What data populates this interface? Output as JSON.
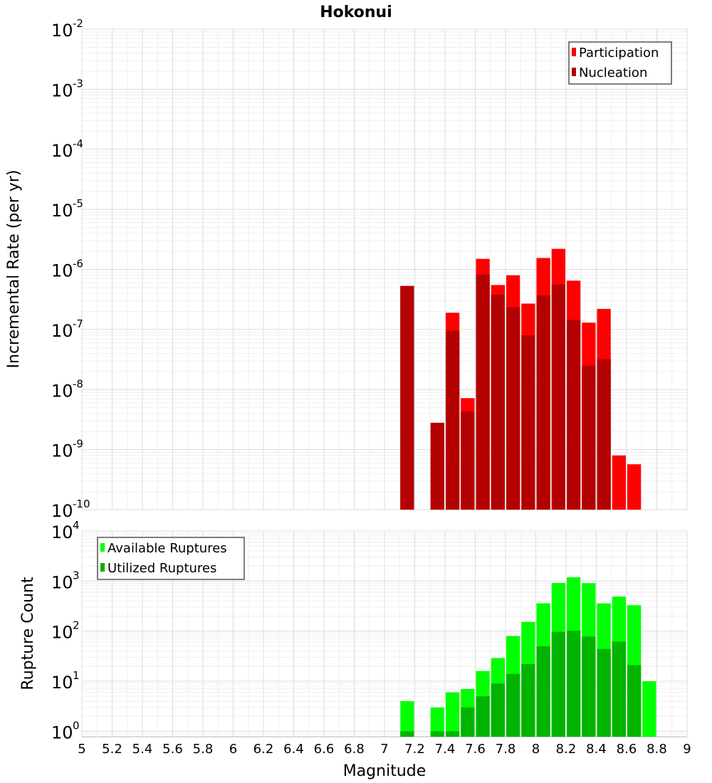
{
  "chart_data": {
    "title": "Hokonui",
    "xlabel": "Magnitude",
    "xlim": [
      5,
      9
    ],
    "xticks": [
      "5",
      "5.2",
      "5.4",
      "5.6",
      "5.8",
      "6",
      "6.2",
      "6.4",
      "6.6",
      "6.8",
      "7",
      "7.2",
      "7.4",
      "7.6",
      "7.8",
      "8",
      "8.2",
      "8.4",
      "8.6",
      "8.8",
      "9"
    ],
    "bin_width": 0.1,
    "panels": [
      {
        "id": "rate",
        "type": "bar",
        "yscale": "log",
        "ylabel": "Incremental Rate (per yr)",
        "ylim": [
          1e-10,
          0.01
        ],
        "ytick_exponents": [
          -10,
          -9,
          -8,
          -7,
          -6,
          -5,
          -4,
          -3,
          -2
        ],
        "legend_position": "top-right",
        "series": [
          {
            "name": "Participation",
            "color": "#ff0000",
            "x": [
              7.15,
              7.35,
              7.45,
              7.55,
              7.65,
              7.75,
              7.85,
              7.95,
              8.05,
              8.15,
              8.25,
              8.35,
              8.45,
              8.55,
              8.65
            ],
            "values": [
              5.3e-07,
              2.8e-09,
              1.9e-07,
              7.2e-09,
              1.5e-06,
              5.5e-07,
              8e-07,
              2.7e-07,
              1.55e-06,
              2.2e-06,
              6.5e-07,
              1.3e-07,
              2.2e-07,
              8e-10,
              5.7e-10
            ]
          },
          {
            "name": "Nucleation",
            "color": "#b30000",
            "x": [
              7.15,
              7.35,
              7.45,
              7.55,
              7.65,
              7.75,
              7.85,
              7.95,
              8.05,
              8.15,
              8.25,
              8.35,
              8.45
            ],
            "values": [
              5.3e-07,
              2.8e-09,
              9.5e-08,
              4.3e-09,
              8.2e-07,
              3.8e-07,
              2.35e-07,
              8e-08,
              3.7e-07,
              5.6e-07,
              1.45e-07,
              2.5e-08,
              3.2e-08
            ]
          }
        ]
      },
      {
        "id": "count",
        "type": "bar",
        "yscale": "log",
        "ylabel": "Rupture Count",
        "ylim": [
          0.78,
          10000
        ],
        "ytick_exponents": [
          0,
          1,
          2,
          3,
          4
        ],
        "legend_position": "top-left",
        "series": [
          {
            "name": "Available Ruptures",
            "color": "#00ff00",
            "x": [
              7.15,
              7.35,
              7.45,
              7.55,
              7.65,
              7.75,
              7.85,
              7.95,
              8.05,
              8.15,
              8.25,
              8.35,
              8.45,
              8.55,
              8.65,
              8.75
            ],
            "values": [
              4,
              3,
              6,
              7,
              16,
              29,
              80,
              153,
              360,
              920,
              1190,
              910,
              360,
              490,
              330,
              10
            ]
          },
          {
            "name": "Utilized Ruptures",
            "color": "#00b300",
            "x": [
              7.15,
              7.35,
              7.45,
              7.55,
              7.65,
              7.75,
              7.85,
              7.95,
              8.05,
              8.15,
              8.25,
              8.35,
              8.45,
              8.55,
              8.65
            ],
            "values": [
              1,
              1,
              1,
              3,
              5,
              9,
              14,
              22,
              50,
              97,
              102,
              78,
              44,
              62,
              21
            ]
          }
        ]
      }
    ]
  }
}
